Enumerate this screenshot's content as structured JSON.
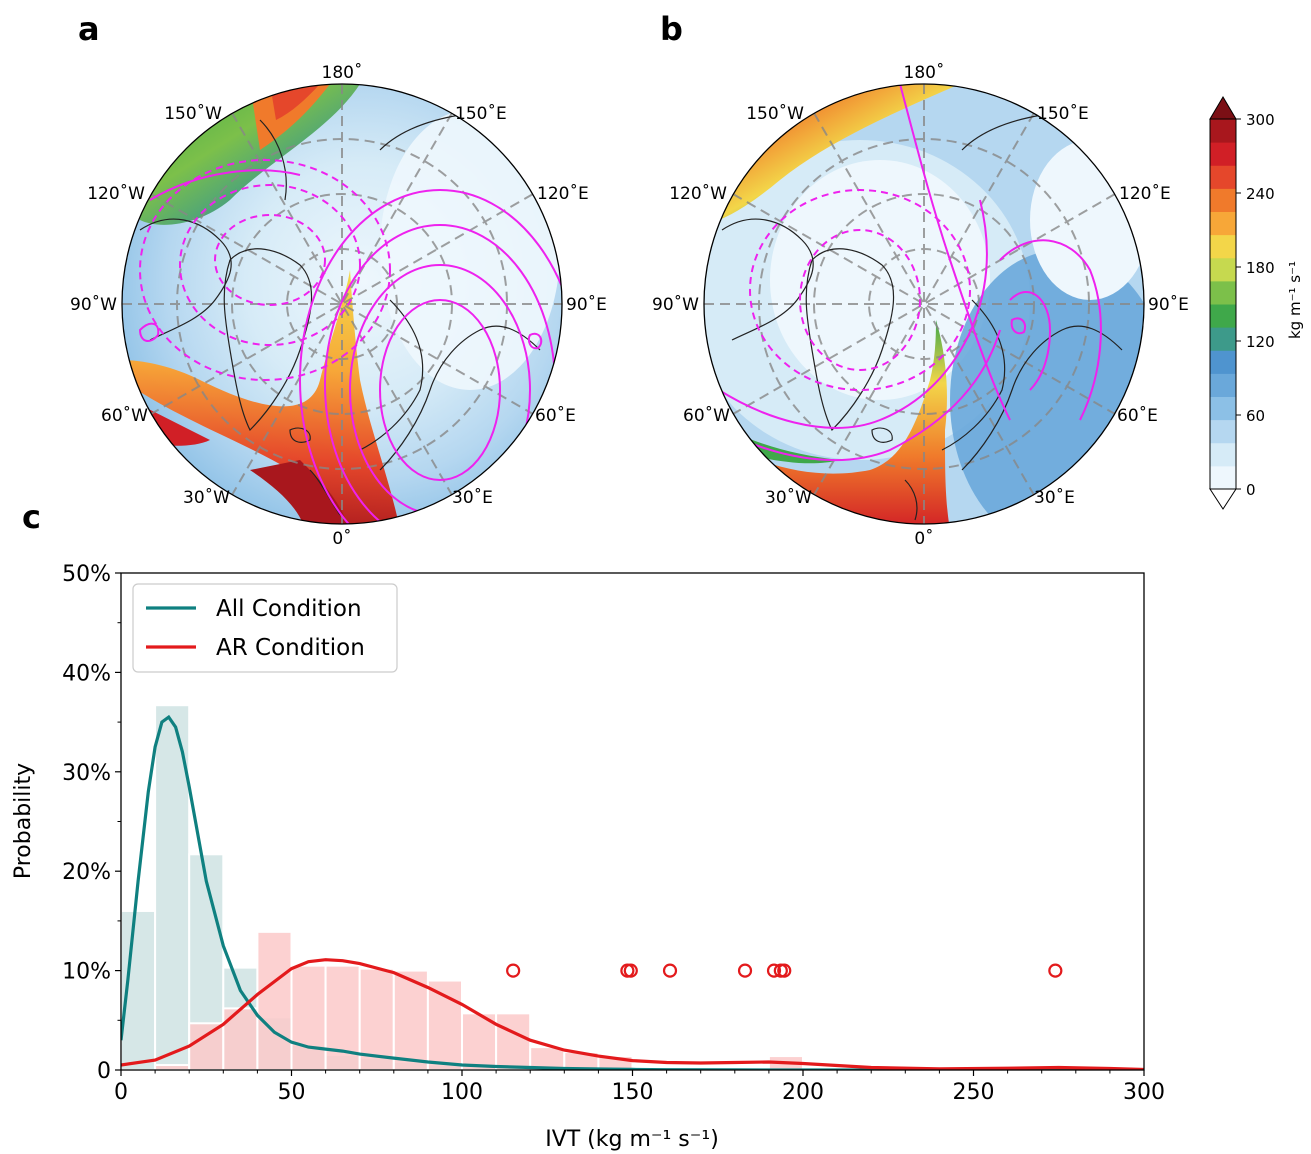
{
  "panels": {
    "a": {
      "label": "a"
    },
    "b": {
      "label": "b"
    },
    "c": {
      "label": "c"
    }
  },
  "map_labels": {
    "top": "180˚",
    "bottom": "0˚",
    "left": "90˚W",
    "right": "90˚E",
    "w150": "150˚W",
    "e150": "150˚E",
    "w120": "120˚W",
    "e120": "120˚E",
    "w60": "60˚W",
    "e60": "60˚E",
    "w30": "30˚W",
    "e30": "30˚E"
  },
  "colorbar": {
    "label": "kg m⁻¹ s⁻¹",
    "ticks": [
      0,
      60,
      120,
      180,
      240,
      300
    ],
    "colors": [
      "#eef7fd",
      "#d6ebf7",
      "#b5d7f0",
      "#8cc0e6",
      "#6aa8da",
      "#4f94cf",
      "#3d9a8a",
      "#3fa84a",
      "#7cc04a",
      "#c6d94f",
      "#f3d649",
      "#f7a738",
      "#f07a2b",
      "#e5472b",
      "#d11f26",
      "#a8171d"
    ],
    "over_color": "#7b0f15",
    "under_color": "#ffffff"
  },
  "chart_data": {
    "type": "histogram",
    "xlabel": "IVT (kg m⁻¹ s⁻¹)",
    "ylabel": "Probability",
    "xlim": [
      0,
      300
    ],
    "ylim": [
      0,
      50
    ],
    "xticks": [
      0,
      50,
      100,
      150,
      200,
      250,
      300
    ],
    "yticks": [
      0,
      10,
      20,
      30,
      40,
      50
    ],
    "ytick_labels": [
      "0",
      "10%",
      "20%",
      "30%",
      "40%",
      "50%"
    ],
    "legend_position": "upper-left",
    "bin_width": 10,
    "series": [
      {
        "name": "All Condition",
        "color": "#0f8080",
        "hist_color": "#cfe3e3",
        "bins": [
          0,
          10,
          20,
          30,
          40,
          50,
          60,
          70,
          80,
          90,
          100,
          110,
          120
        ],
        "values": [
          16,
          36.7,
          21.7,
          10.3,
          5.3,
          2.5,
          1.5,
          1.2,
          0.8,
          0.5,
          0.3,
          0.2,
          0.1
        ],
        "kde_x": [
          0,
          2,
          5,
          8,
          10,
          12,
          14,
          16,
          18,
          20,
          25,
          30,
          35,
          40,
          45,
          50,
          55,
          60,
          65,
          70,
          80,
          90,
          100,
          110,
          120,
          130,
          140,
          150,
          160,
          180,
          200,
          250,
          300
        ],
        "kde_y": [
          3,
          9,
          19,
          28,
          32.5,
          35,
          35.5,
          34.5,
          32,
          28.5,
          19,
          12.5,
          8,
          5.5,
          3.8,
          2.8,
          2.3,
          2.1,
          1.9,
          1.6,
          1.2,
          0.8,
          0.5,
          0.35,
          0.25,
          0.15,
          0.1,
          0.06,
          0.03,
          0.01,
          0,
          0,
          0
        ]
      },
      {
        "name": "AR Condition",
        "color": "#e31a1c",
        "hist_color": "#fbc9c9",
        "bins": [
          10,
          20,
          30,
          40,
          50,
          60,
          70,
          80,
          90,
          100,
          110,
          120,
          130,
          140,
          190
        ],
        "values": [
          0.5,
          4.7,
          6.2,
          13.9,
          10.5,
          10.5,
          10.2,
          10.0,
          9.0,
          5.7,
          5.7,
          2.3,
          1.8,
          1.4,
          1.4
        ],
        "kde_x": [
          0,
          10,
          20,
          30,
          40,
          50,
          55,
          60,
          65,
          70,
          80,
          90,
          100,
          110,
          120,
          130,
          140,
          150,
          160,
          170,
          180,
          190,
          200,
          220,
          240,
          260,
          275,
          290,
          300
        ],
        "kde_y": [
          0.5,
          1.0,
          2.4,
          4.6,
          7.6,
          10.2,
          10.9,
          11.1,
          11.0,
          10.7,
          9.8,
          8.3,
          6.6,
          4.6,
          3.0,
          2.0,
          1.4,
          0.95,
          0.75,
          0.7,
          0.75,
          0.8,
          0.65,
          0.25,
          0.12,
          0.18,
          0.25,
          0.15,
          0.05
        ]
      }
    ],
    "markers": {
      "y": 10,
      "x": [
        115,
        148.5,
        149.5,
        161,
        183,
        191.5,
        193.5,
        194.5,
        274
      ],
      "color": "#e31a1c"
    }
  }
}
